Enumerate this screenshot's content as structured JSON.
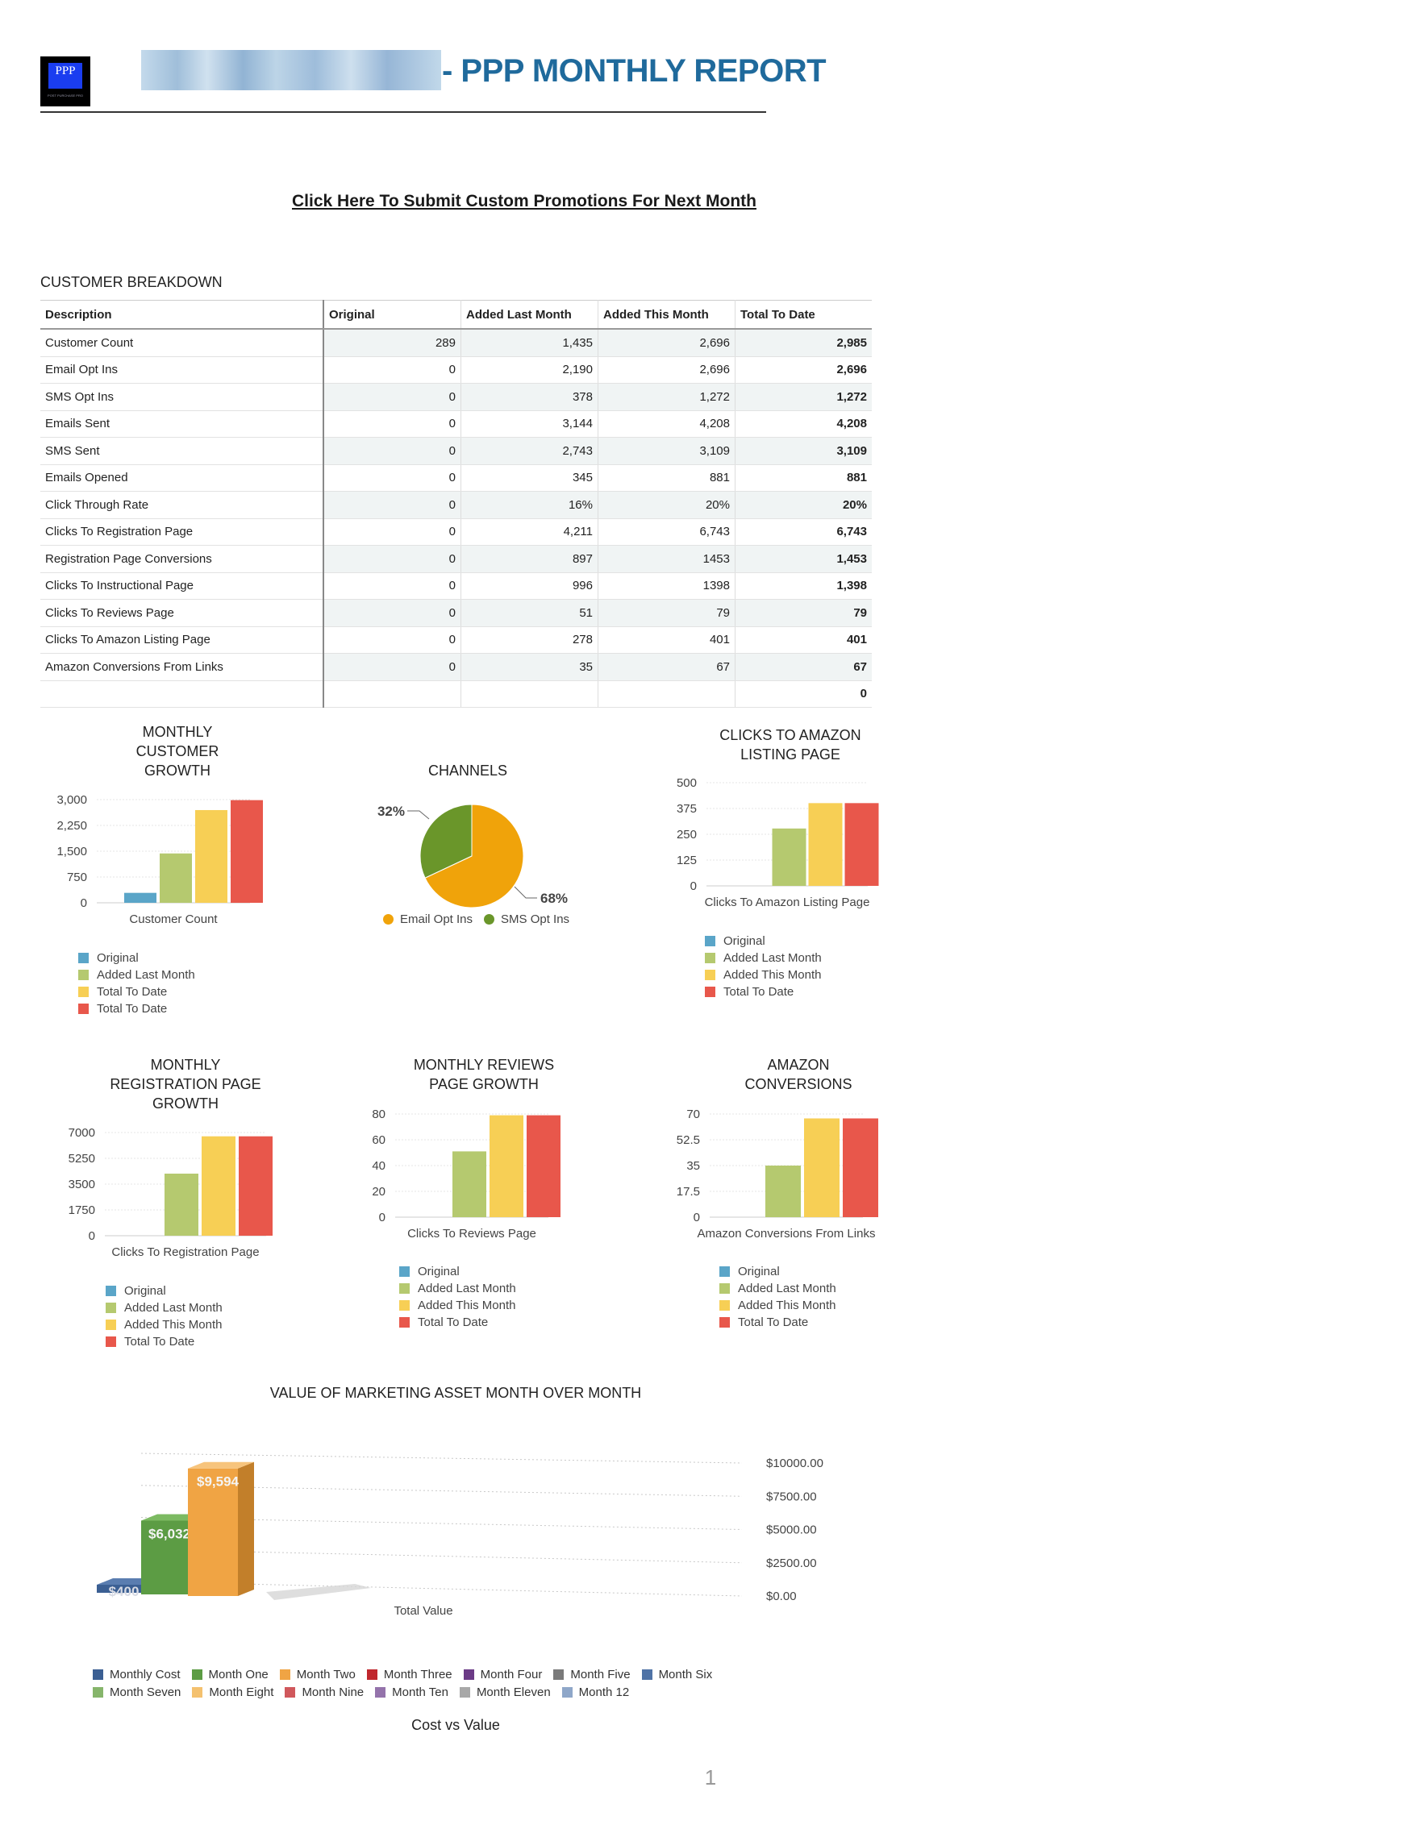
{
  "header": {
    "logo_text": "PPP",
    "logo_tagline": "POST PURCHASE PRO",
    "title": "- PPP MONTHLY REPORT",
    "promo_link": "Click Here To Submit Custom Promotions For Next Month"
  },
  "table": {
    "title": "CUSTOMER BREAKDOWN",
    "columns": [
      "Description",
      "Original",
      "Added Last Month",
      "Added This Month",
      "Total To Date"
    ],
    "rows": [
      [
        "Customer Count",
        "289",
        "1,435",
        "2,696",
        "2,985"
      ],
      [
        "Email Opt Ins",
        "0",
        "2,190",
        "2,696",
        "2,696"
      ],
      [
        "SMS Opt Ins",
        "0",
        "378",
        "1,272",
        "1,272"
      ],
      [
        "Emails Sent",
        "0",
        "3,144",
        "4,208",
        "4,208"
      ],
      [
        "SMS Sent",
        "0",
        "2,743",
        "3,109",
        "3,109"
      ],
      [
        "Emails Opened",
        "0",
        "345",
        "881",
        "881"
      ],
      [
        "Click Through Rate",
        "0",
        "16%",
        "20%",
        "20%"
      ],
      [
        "Clicks To Registration Page",
        "0",
        "4,211",
        "6,743",
        "6,743"
      ],
      [
        "Registration Page Conversions",
        "0",
        "897",
        "1453",
        "1,453"
      ],
      [
        "Clicks To Instructional Page",
        "0",
        "996",
        "1398",
        "1,398"
      ],
      [
        "Clicks To Reviews Page",
        "0",
        "51",
        "79",
        "79"
      ],
      [
        "Clicks To Amazon Listing Page",
        "0",
        "278",
        "401",
        "401"
      ],
      [
        "Amazon Conversions From Links",
        "0",
        "35",
        "67",
        "67"
      ],
      [
        "",
        "",
        "",
        "",
        "0"
      ]
    ]
  },
  "colors": {
    "original": "#5aa5c8",
    "added_last": "#b5c96f",
    "added_this": "#f7cf55",
    "total": "#e8574b",
    "email": "#f0a30a",
    "sms": "#6a962a",
    "title_blue": "#1f6a9c"
  },
  "chart_data": [
    {
      "id": "customer",
      "type": "bar",
      "title": "MONTHLY CUSTOMER GROWTH",
      "title_lines": [
        "MONTHLY",
        "CUSTOMER",
        "GROWTH"
      ],
      "xlabel": "Customer Count",
      "yticks": [
        "0",
        "750",
        "1,500",
        "2,250",
        "3,000"
      ],
      "ylim": [
        0,
        3000
      ],
      "series": [
        {
          "name": "Original",
          "values": [
            289
          ]
        },
        {
          "name": "Added Last Month",
          "values": [
            1435
          ]
        },
        {
          "name": "Total To Date",
          "values": [
            2696
          ]
        },
        {
          "name": "Total To Date",
          "values": [
            2985
          ]
        }
      ],
      "bar_colors": [
        "#5aa5c8",
        "#b5c96f",
        "#f7cf55",
        "#e8574b"
      ],
      "legend": [
        "Original",
        "Added Last Month",
        "Total To Date",
        "Total To Date"
      ]
    },
    {
      "id": "channels",
      "type": "pie",
      "title": "CHANNELS",
      "slices": [
        {
          "name": "Email Opt Ins",
          "value": 68,
          "label": "68%"
        },
        {
          "name": "SMS Opt Ins",
          "value": 32,
          "label": "32%"
        }
      ],
      "legend": [
        "Email Opt Ins",
        "SMS Opt Ins"
      ]
    },
    {
      "id": "amazon-clicks",
      "type": "bar",
      "title": "CLICKS TO AMAZON LISTING PAGE",
      "title_lines": [
        "CLICKS TO AMAZON",
        "LISTING PAGE"
      ],
      "xlabel": "Clicks To Amazon Listing Page",
      "yticks": [
        "0",
        "125",
        "250",
        "375",
        "500"
      ],
      "ylim": [
        0,
        500
      ],
      "series": [
        {
          "name": "Original",
          "values": [
            0
          ]
        },
        {
          "name": "Added Last Month",
          "values": [
            278
          ]
        },
        {
          "name": "Added This Month",
          "values": [
            401
          ]
        },
        {
          "name": "Total To Date",
          "values": [
            401
          ]
        }
      ],
      "bar_colors": [
        "#5aa5c8",
        "#b5c96f",
        "#f7cf55",
        "#e8574b"
      ],
      "legend": [
        "Original",
        "Added Last Month",
        "Added This Month",
        "Total To Date"
      ]
    },
    {
      "id": "registration",
      "type": "bar",
      "title": "MONTHLY REGISTRATION PAGE GROWTH",
      "title_lines": [
        "MONTHLY",
        "REGISTRATION PAGE",
        "GROWTH"
      ],
      "xlabel": "Clicks To Registration Page",
      "yticks": [
        "0",
        "1750",
        "3500",
        "5250",
        "7000"
      ],
      "ylim": [
        0,
        7000
      ],
      "series": [
        {
          "name": "Original",
          "values": [
            0
          ]
        },
        {
          "name": "Added Last Month",
          "values": [
            4211
          ]
        },
        {
          "name": "Added This Month",
          "values": [
            6743
          ]
        },
        {
          "name": "Total To Date",
          "values": [
            6743
          ]
        }
      ],
      "bar_colors": [
        "#5aa5c8",
        "#b5c96f",
        "#f7cf55",
        "#e8574b"
      ],
      "legend": [
        "Original",
        "Added Last Month",
        "Added This Month",
        "Total To Date"
      ]
    },
    {
      "id": "reviews",
      "type": "bar",
      "title": "MONTHLY REVIEWS PAGE GROWTH",
      "title_lines": [
        "MONTHLY REVIEWS",
        "PAGE GROWTH"
      ],
      "xlabel": "Clicks To Reviews Page",
      "yticks": [
        "0",
        "20",
        "40",
        "60",
        "80"
      ],
      "ylim": [
        0,
        80
      ],
      "series": [
        {
          "name": "Original",
          "values": [
            0
          ]
        },
        {
          "name": "Added Last Month",
          "values": [
            51
          ]
        },
        {
          "name": "Added This Month",
          "values": [
            79
          ]
        },
        {
          "name": "Total To Date",
          "values": [
            79
          ]
        }
      ],
      "bar_colors": [
        "#5aa5c8",
        "#b5c96f",
        "#f7cf55",
        "#e8574b"
      ],
      "legend": [
        "Original",
        "Added Last Month",
        "Added This Month",
        "Total To Date"
      ]
    },
    {
      "id": "amazon-conv",
      "type": "bar",
      "title": "AMAZON CONVERSIONS",
      "title_lines": [
        "AMAZON",
        "CONVERSIONS"
      ],
      "xlabel": "Amazon Conversions From Links",
      "yticks": [
        "0",
        "17.5",
        "35",
        "52.5",
        "70"
      ],
      "ylim": [
        0,
        70
      ],
      "series": [
        {
          "name": "Original",
          "values": [
            0
          ]
        },
        {
          "name": "Added Last Month",
          "values": [
            35
          ]
        },
        {
          "name": "Added This Month",
          "values": [
            67
          ]
        },
        {
          "name": "Total To Date",
          "values": [
            67
          ]
        }
      ],
      "bar_colors": [
        "#5aa5c8",
        "#b5c96f",
        "#f7cf55",
        "#e8574b"
      ],
      "legend": [
        "Original",
        "Added Last Month",
        "Added This Month",
        "Total To Date"
      ]
    },
    {
      "id": "value",
      "type": "bar",
      "title": "VALUE OF MARKETING ASSET MONTH OVER MONTH",
      "xlabel": "Total Value",
      "caption": "Cost vs Value",
      "yticks": [
        "$0.00",
        "$2500.00",
        "$5000.00",
        "$7500.00",
        "$10000.00"
      ],
      "ylim": [
        0,
        10000
      ],
      "series": [
        {
          "name": "Monthly Cost",
          "values": [
            400
          ],
          "label": "$400"
        },
        {
          "name": "Month One",
          "values": [
            6032
          ],
          "label": "$6,032"
        },
        {
          "name": "Month Two",
          "values": [
            9594
          ],
          "label": "$9,594"
        }
      ],
      "legend": [
        {
          "name": "Monthly Cost",
          "color": "#3b5f93"
        },
        {
          "name": "Month One",
          "color": "#5c9c44"
        },
        {
          "name": "Month Two",
          "color": "#f0a444"
        },
        {
          "name": "Month Three",
          "color": "#c0272d"
        },
        {
          "name": "Month Four",
          "color": "#6b3a86"
        },
        {
          "name": "Month Five",
          "color": "#7a7a7a"
        },
        {
          "name": "Month Six",
          "color": "#4f73a6"
        },
        {
          "name": "Month Seven",
          "color": "#86b56b"
        },
        {
          "name": "Month Eight",
          "color": "#f4c16f"
        },
        {
          "name": "Month Nine",
          "color": "#d0585c"
        },
        {
          "name": "Month Ten",
          "color": "#9473ab"
        },
        {
          "name": "Month Eleven",
          "color": "#a8a8a8"
        },
        {
          "name": "Month 12",
          "color": "#8fa7c9"
        }
      ]
    }
  ],
  "footer": {
    "page_number": "1"
  }
}
